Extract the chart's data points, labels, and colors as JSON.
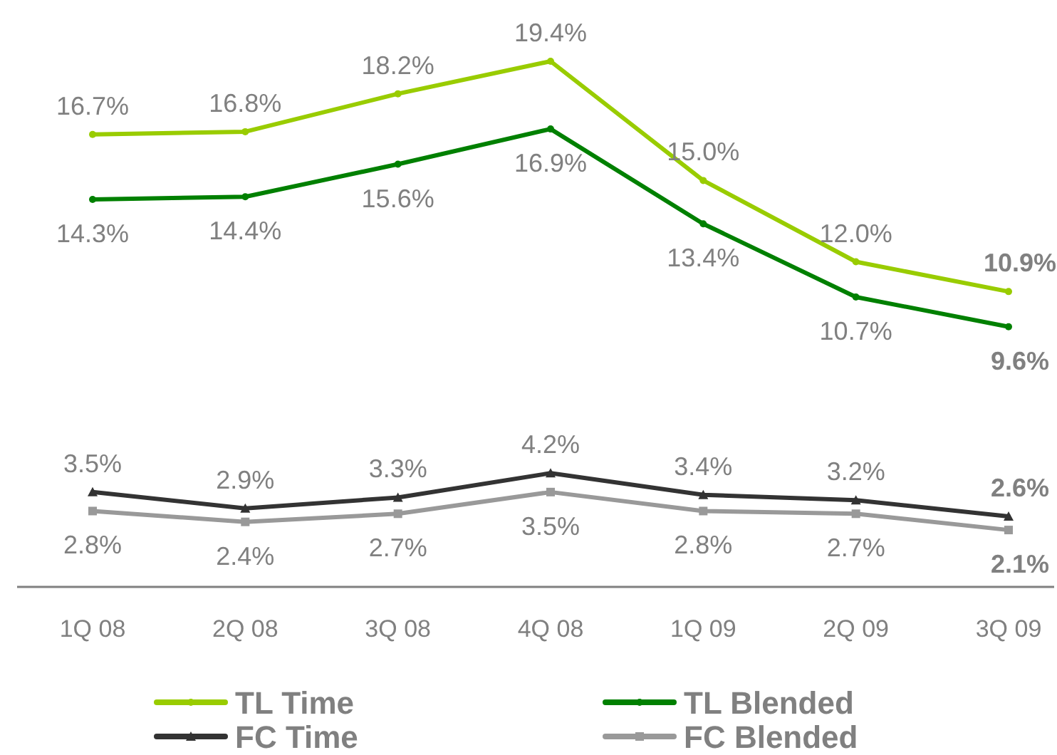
{
  "chart_data": {
    "type": "line",
    "categories": [
      "1Q 08",
      "2Q 08",
      "3Q 08",
      "4Q 08",
      "1Q 09",
      "2Q 09",
      "3Q 09"
    ],
    "tick_labels": "x",
    "data_labels": true,
    "legend": "bottom",
    "series": [
      {
        "name": "TL Time",
        "color": "#99cc00",
        "marker": "circle",
        "values": [
          16.7,
          16.8,
          18.2,
          19.4,
          15.0,
          12.0,
          10.9
        ],
        "value_labels": [
          "16.7%",
          "16.8%",
          "18.2%",
          "19.4%",
          "15.0%",
          "12.0%",
          "10.9%"
        ]
      },
      {
        "name": "TL Blended",
        "color": "#008000",
        "marker": "circle",
        "values": [
          14.3,
          14.4,
          15.6,
          16.9,
          13.4,
          10.7,
          9.6
        ],
        "value_labels": [
          "14.3%",
          "14.4%",
          "15.6%",
          "16.9%",
          "13.4%",
          "10.7%",
          "9.6%"
        ]
      },
      {
        "name": "FC Time",
        "color": "#333333",
        "marker": "triangle",
        "values": [
          3.5,
          2.9,
          3.3,
          4.2,
          3.4,
          3.2,
          2.6
        ],
        "value_labels": [
          "3.5%",
          "2.9%",
          "3.3%",
          "4.2%",
          "3.4%",
          "3.2%",
          "2.6%"
        ]
      },
      {
        "name": "FC Blended",
        "color": "#999999",
        "marker": "square",
        "values": [
          2.8,
          2.4,
          2.7,
          3.5,
          2.8,
          2.7,
          2.1
        ],
        "value_labels": [
          "2.8%",
          "2.4%",
          "2.7%",
          "3.5%",
          "2.8%",
          "2.7%",
          "2.1%"
        ]
      }
    ]
  }
}
